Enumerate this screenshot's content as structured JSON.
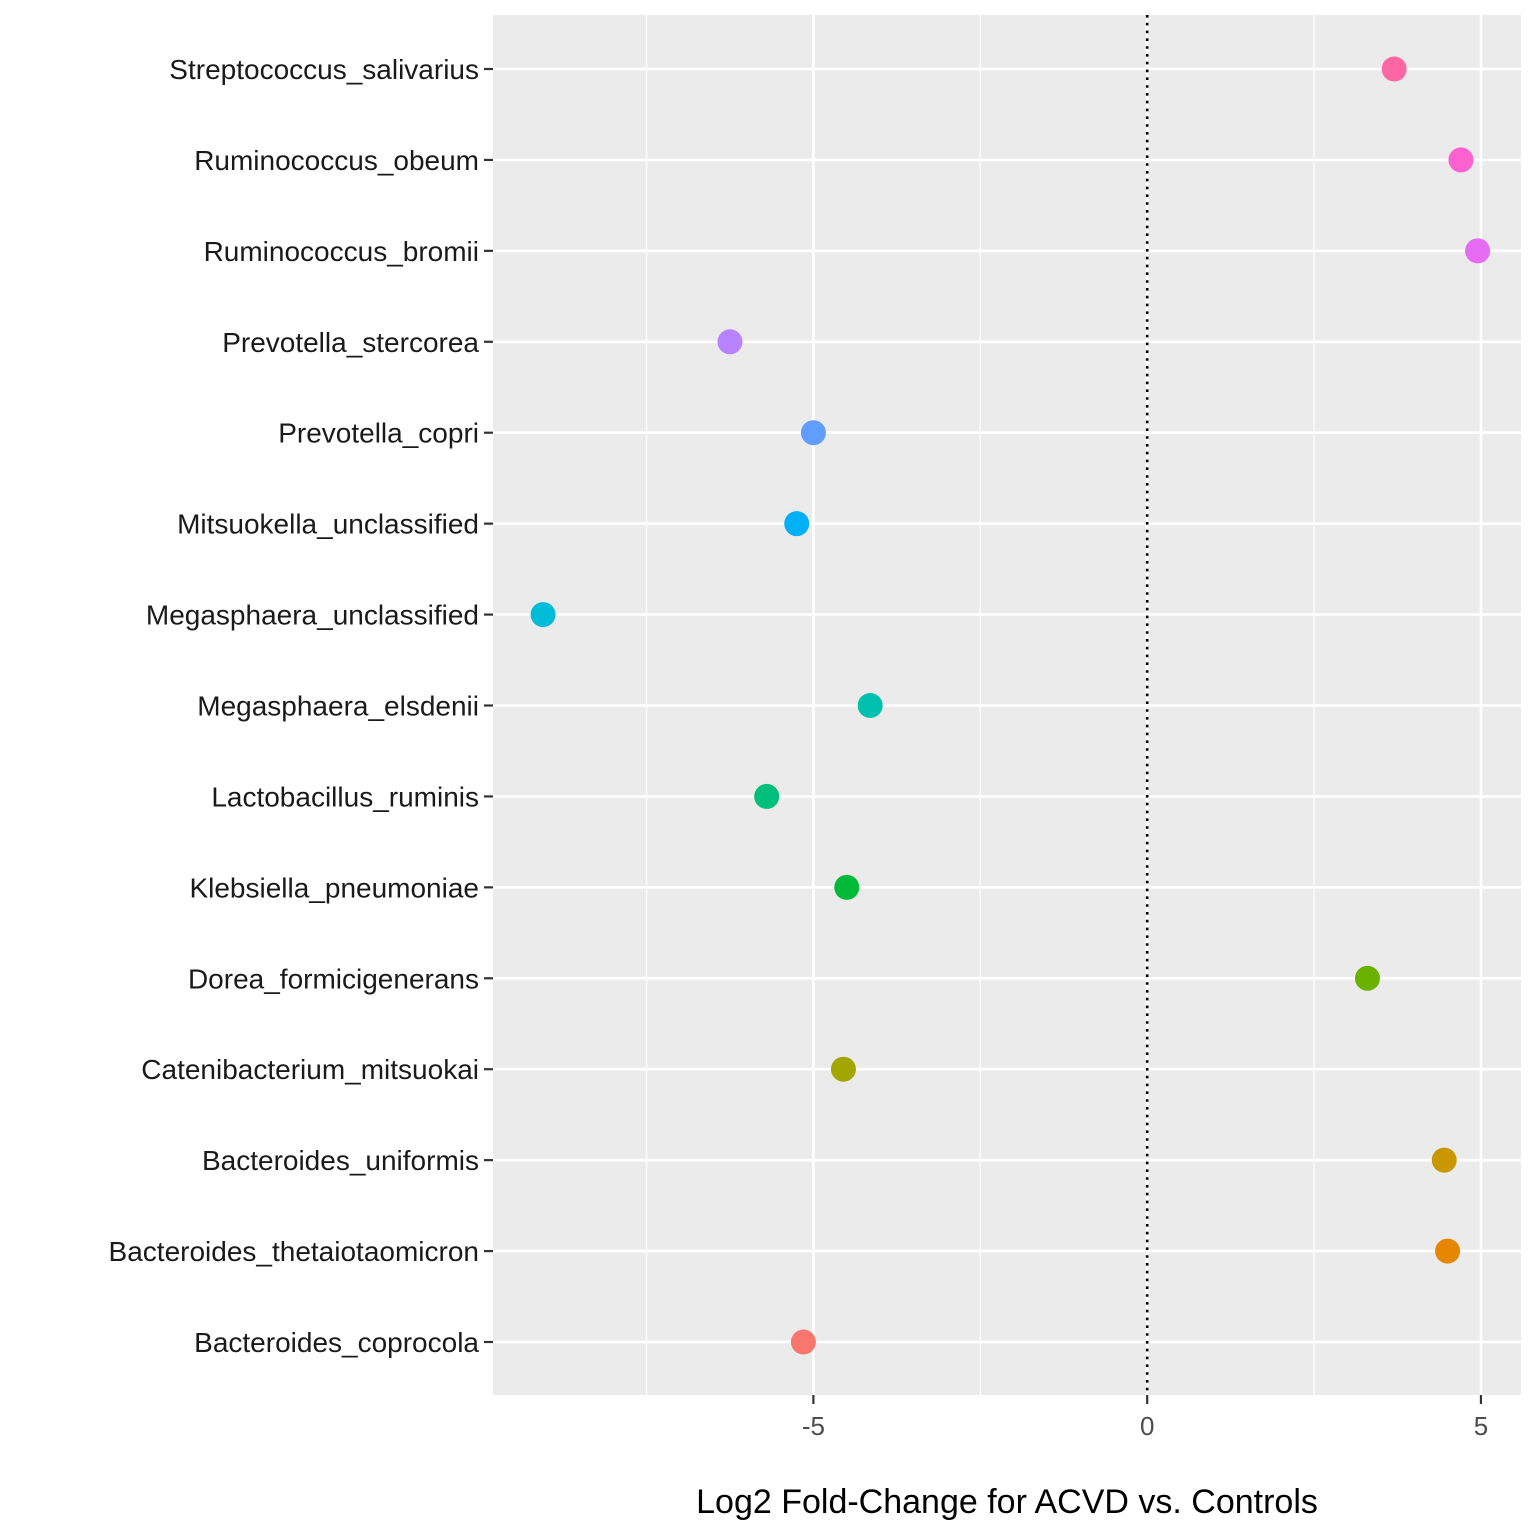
{
  "chart_data": {
    "type": "scatter",
    "title": "",
    "xlabel": "Log2 Fold-Change for ACVD vs. Controls",
    "ylabel": "",
    "xlim": [
      -9.8,
      5.6
    ],
    "x_ticks": [
      -5,
      0,
      5
    ],
    "x_tick_labels": [
      "-5",
      "0",
      "5"
    ],
    "reference_line": {
      "x": 0,
      "style": "dotted"
    },
    "grid": true,
    "legend": "none",
    "points": [
      {
        "category": "Bacteroides_coprocola",
        "x": -5.15,
        "color": "#F8766D"
      },
      {
        "category": "Bacteroides_thetaiotaomicron",
        "x": 4.5,
        "color": "#E58700"
      },
      {
        "category": "Bacteroides_uniformis",
        "x": 4.45,
        "color": "#C99800"
      },
      {
        "category": "Catenibacterium_mitsuokai",
        "x": -4.55,
        "color": "#A3A500"
      },
      {
        "category": "Dorea_formicigenerans",
        "x": 3.3,
        "color": "#6BB100"
      },
      {
        "category": "Klebsiella_pneumoniae",
        "x": -4.5,
        "color": "#00BA38"
      },
      {
        "category": "Lactobacillus_ruminis",
        "x": -5.7,
        "color": "#00BF7D"
      },
      {
        "category": "Megasphaera_elsdenii",
        "x": -4.15,
        "color": "#00C0AF"
      },
      {
        "category": "Megasphaera_unclassified",
        "x": -9.05,
        "color": "#00BCD8"
      },
      {
        "category": "Mitsuokella_unclassified",
        "x": -5.25,
        "color": "#00B0F6"
      },
      {
        "category": "Prevotella_copri",
        "x": -5.0,
        "color": "#619CFF"
      },
      {
        "category": "Prevotella_stercorea",
        "x": -6.25,
        "color": "#B983FF"
      },
      {
        "category": "Ruminococcus_bromii",
        "x": 4.95,
        "color": "#E76BF3"
      },
      {
        "category": "Ruminococcus_obeum",
        "x": 4.7,
        "color": "#FD61D1"
      },
      {
        "category": "Streptococcus_salivarius",
        "x": 3.7,
        "color": "#FF67A4"
      }
    ]
  }
}
